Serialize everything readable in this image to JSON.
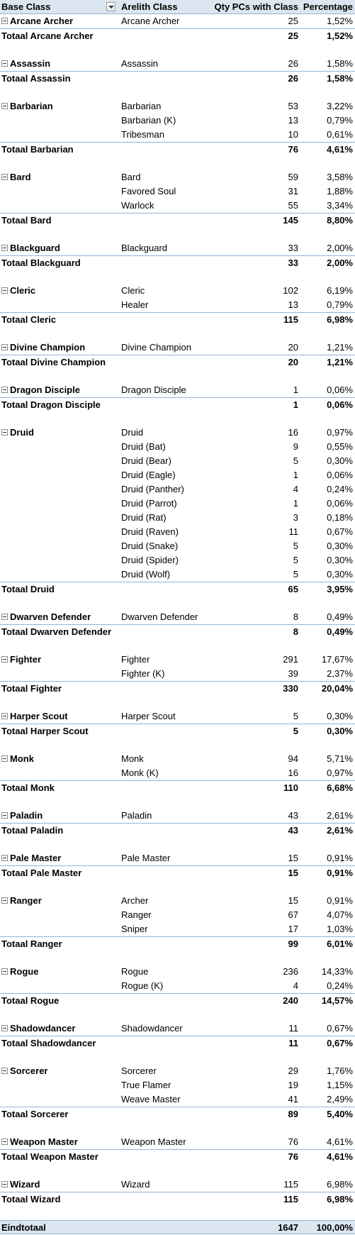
{
  "headers": {
    "base_class": "Base Class",
    "arelith_class": "Arelith Class",
    "qty": "Qty PCs with Class",
    "percentage": "Percentage"
  },
  "groups": [
    {
      "name": "Arcane Archer",
      "items": [
        {
          "cls": "Arcane Archer",
          "qty": "25",
          "pct": "1,52%"
        }
      ],
      "total_label": "Totaal Arcane Archer",
      "total_qty": "25",
      "total_pct": "1,52%"
    },
    {
      "name": "Assassin",
      "items": [
        {
          "cls": "Assassin",
          "qty": "26",
          "pct": "1,58%"
        }
      ],
      "total_label": "Totaal Assassin",
      "total_qty": "26",
      "total_pct": "1,58%"
    },
    {
      "name": "Barbarian",
      "items": [
        {
          "cls": "Barbarian",
          "qty": "53",
          "pct": "3,22%"
        },
        {
          "cls": "Barbarian (K)",
          "qty": "13",
          "pct": "0,79%"
        },
        {
          "cls": "Tribesman",
          "qty": "10",
          "pct": "0,61%"
        }
      ],
      "total_label": "Totaal Barbarian",
      "total_qty": "76",
      "total_pct": "4,61%"
    },
    {
      "name": "Bard",
      "items": [
        {
          "cls": "Bard",
          "qty": "59",
          "pct": "3,58%"
        },
        {
          "cls": "Favored Soul",
          "qty": "31",
          "pct": "1,88%"
        },
        {
          "cls": "Warlock",
          "qty": "55",
          "pct": "3,34%"
        }
      ],
      "total_label": "Totaal Bard",
      "total_qty": "145",
      "total_pct": "8,80%"
    },
    {
      "name": "Blackguard",
      "items": [
        {
          "cls": "Blackguard",
          "qty": "33",
          "pct": "2,00%"
        }
      ],
      "total_label": "Totaal Blackguard",
      "total_qty": "33",
      "total_pct": "2,00%"
    },
    {
      "name": "Cleric",
      "items": [
        {
          "cls": "Cleric",
          "qty": "102",
          "pct": "6,19%"
        },
        {
          "cls": "Healer",
          "qty": "13",
          "pct": "0,79%"
        }
      ],
      "total_label": "Totaal Cleric",
      "total_qty": "115",
      "total_pct": "6,98%"
    },
    {
      "name": "Divine Champion",
      "items": [
        {
          "cls": "Divine Champion",
          "qty": "20",
          "pct": "1,21%"
        }
      ],
      "total_label": "Totaal Divine Champion",
      "total_qty": "20",
      "total_pct": "1,21%"
    },
    {
      "name": "Dragon Disciple",
      "items": [
        {
          "cls": "Dragon Disciple",
          "qty": "1",
          "pct": "0,06%"
        }
      ],
      "total_label": "Totaal Dragon Disciple",
      "total_qty": "1",
      "total_pct": "0,06%"
    },
    {
      "name": "Druid",
      "items": [
        {
          "cls": "Druid",
          "qty": "16",
          "pct": "0,97%"
        },
        {
          "cls": "Druid (Bat)",
          "qty": "9",
          "pct": "0,55%"
        },
        {
          "cls": "Druid (Bear)",
          "qty": "5",
          "pct": "0,30%"
        },
        {
          "cls": "Druid (Eagle)",
          "qty": "1",
          "pct": "0,06%"
        },
        {
          "cls": "Druid (Panther)",
          "qty": "4",
          "pct": "0,24%"
        },
        {
          "cls": "Druid (Parrot)",
          "qty": "1",
          "pct": "0,06%"
        },
        {
          "cls": "Druid (Rat)",
          "qty": "3",
          "pct": "0,18%"
        },
        {
          "cls": "Druid (Raven)",
          "qty": "11",
          "pct": "0,67%"
        },
        {
          "cls": "Druid (Snake)",
          "qty": "5",
          "pct": "0,30%"
        },
        {
          "cls": "Druid (Spider)",
          "qty": "5",
          "pct": "0,30%"
        },
        {
          "cls": "Druid (Wolf)",
          "qty": "5",
          "pct": "0,30%"
        }
      ],
      "total_label": "Totaal Druid",
      "total_qty": "65",
      "total_pct": "3,95%"
    },
    {
      "name": "Dwarven Defender",
      "items": [
        {
          "cls": "Dwarven Defender",
          "qty": "8",
          "pct": "0,49%"
        }
      ],
      "total_label": "Totaal Dwarven Defender",
      "total_qty": "8",
      "total_pct": "0,49%"
    },
    {
      "name": "Fighter",
      "items": [
        {
          "cls": "Fighter",
          "qty": "291",
          "pct": "17,67%"
        },
        {
          "cls": "Fighter (K)",
          "qty": "39",
          "pct": "2,37%"
        }
      ],
      "total_label": "Totaal Fighter",
      "total_qty": "330",
      "total_pct": "20,04%"
    },
    {
      "name": "Harper Scout",
      "items": [
        {
          "cls": "Harper Scout",
          "qty": "5",
          "pct": "0,30%"
        }
      ],
      "total_label": "Totaal Harper Scout",
      "total_qty": "5",
      "total_pct": "0,30%"
    },
    {
      "name": "Monk",
      "items": [
        {
          "cls": "Monk",
          "qty": "94",
          "pct": "5,71%"
        },
        {
          "cls": "Monk (K)",
          "qty": "16",
          "pct": "0,97%"
        }
      ],
      "total_label": "Totaal Monk",
      "total_qty": "110",
      "total_pct": "6,68%"
    },
    {
      "name": "Paladin",
      "items": [
        {
          "cls": "Paladin",
          "qty": "43",
          "pct": "2,61%"
        }
      ],
      "total_label": "Totaal Paladin",
      "total_qty": "43",
      "total_pct": "2,61%"
    },
    {
      "name": "Pale Master",
      "items": [
        {
          "cls": "Pale Master",
          "qty": "15",
          "pct": "0,91%"
        }
      ],
      "total_label": "Totaal Pale Master",
      "total_qty": "15",
      "total_pct": "0,91%"
    },
    {
      "name": "Ranger",
      "items": [
        {
          "cls": "Archer",
          "qty": "15",
          "pct": "0,91%"
        },
        {
          "cls": "Ranger",
          "qty": "67",
          "pct": "4,07%"
        },
        {
          "cls": "Sniper",
          "qty": "17",
          "pct": "1,03%"
        }
      ],
      "total_label": "Totaal Ranger",
      "total_qty": "99",
      "total_pct": "6,01%"
    },
    {
      "name": "Rogue",
      "items": [
        {
          "cls": "Rogue",
          "qty": "236",
          "pct": "14,33%"
        },
        {
          "cls": "Rogue (K)",
          "qty": "4",
          "pct": "0,24%"
        }
      ],
      "total_label": "Totaal Rogue",
      "total_qty": "240",
      "total_pct": "14,57%"
    },
    {
      "name": "Shadowdancer",
      "items": [
        {
          "cls": "Shadowdancer",
          "qty": "11",
          "pct": "0,67%"
        }
      ],
      "total_label": "Totaal Shadowdancer",
      "total_qty": "11",
      "total_pct": "0,67%"
    },
    {
      "name": "Sorcerer",
      "items": [
        {
          "cls": "Sorcerer",
          "qty": "29",
          "pct": "1,76%"
        },
        {
          "cls": "True Flamer",
          "qty": "19",
          "pct": "1,15%"
        },
        {
          "cls": "Weave Master",
          "qty": "41",
          "pct": "2,49%"
        }
      ],
      "total_label": "Totaal Sorcerer",
      "total_qty": "89",
      "total_pct": "5,40%"
    },
    {
      "name": "Weapon Master",
      "items": [
        {
          "cls": "Weapon Master",
          "qty": "76",
          "pct": "4,61%"
        }
      ],
      "total_label": "Totaal Weapon Master",
      "total_qty": "76",
      "total_pct": "4,61%"
    },
    {
      "name": "Wizard",
      "items": [
        {
          "cls": "Wizard",
          "qty": "115",
          "pct": "6,98%"
        }
      ],
      "total_label": "Totaal Wizard",
      "total_qty": "115",
      "total_pct": "6,98%"
    }
  ],
  "grand_total": {
    "label": "Eindtotaal",
    "qty": "1647",
    "pct": "100,00%"
  }
}
